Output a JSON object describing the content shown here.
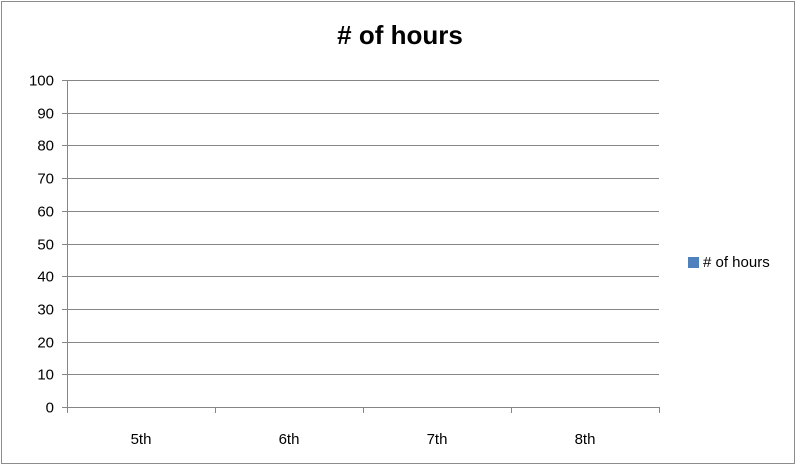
{
  "chart_data": {
    "type": "bar",
    "title": "# of hours",
    "categories": [
      "5th",
      "6th",
      "7th",
      "8th"
    ],
    "series": [
      {
        "name": "# of hours",
        "values": [
          null,
          null,
          null,
          null
        ],
        "color": "#4f81bd"
      }
    ],
    "ylim": [
      0,
      100
    ],
    "yticks": [
      0,
      10,
      20,
      30,
      40,
      50,
      60,
      70,
      80,
      90,
      100
    ],
    "grid": true,
    "legend_position": "right"
  }
}
